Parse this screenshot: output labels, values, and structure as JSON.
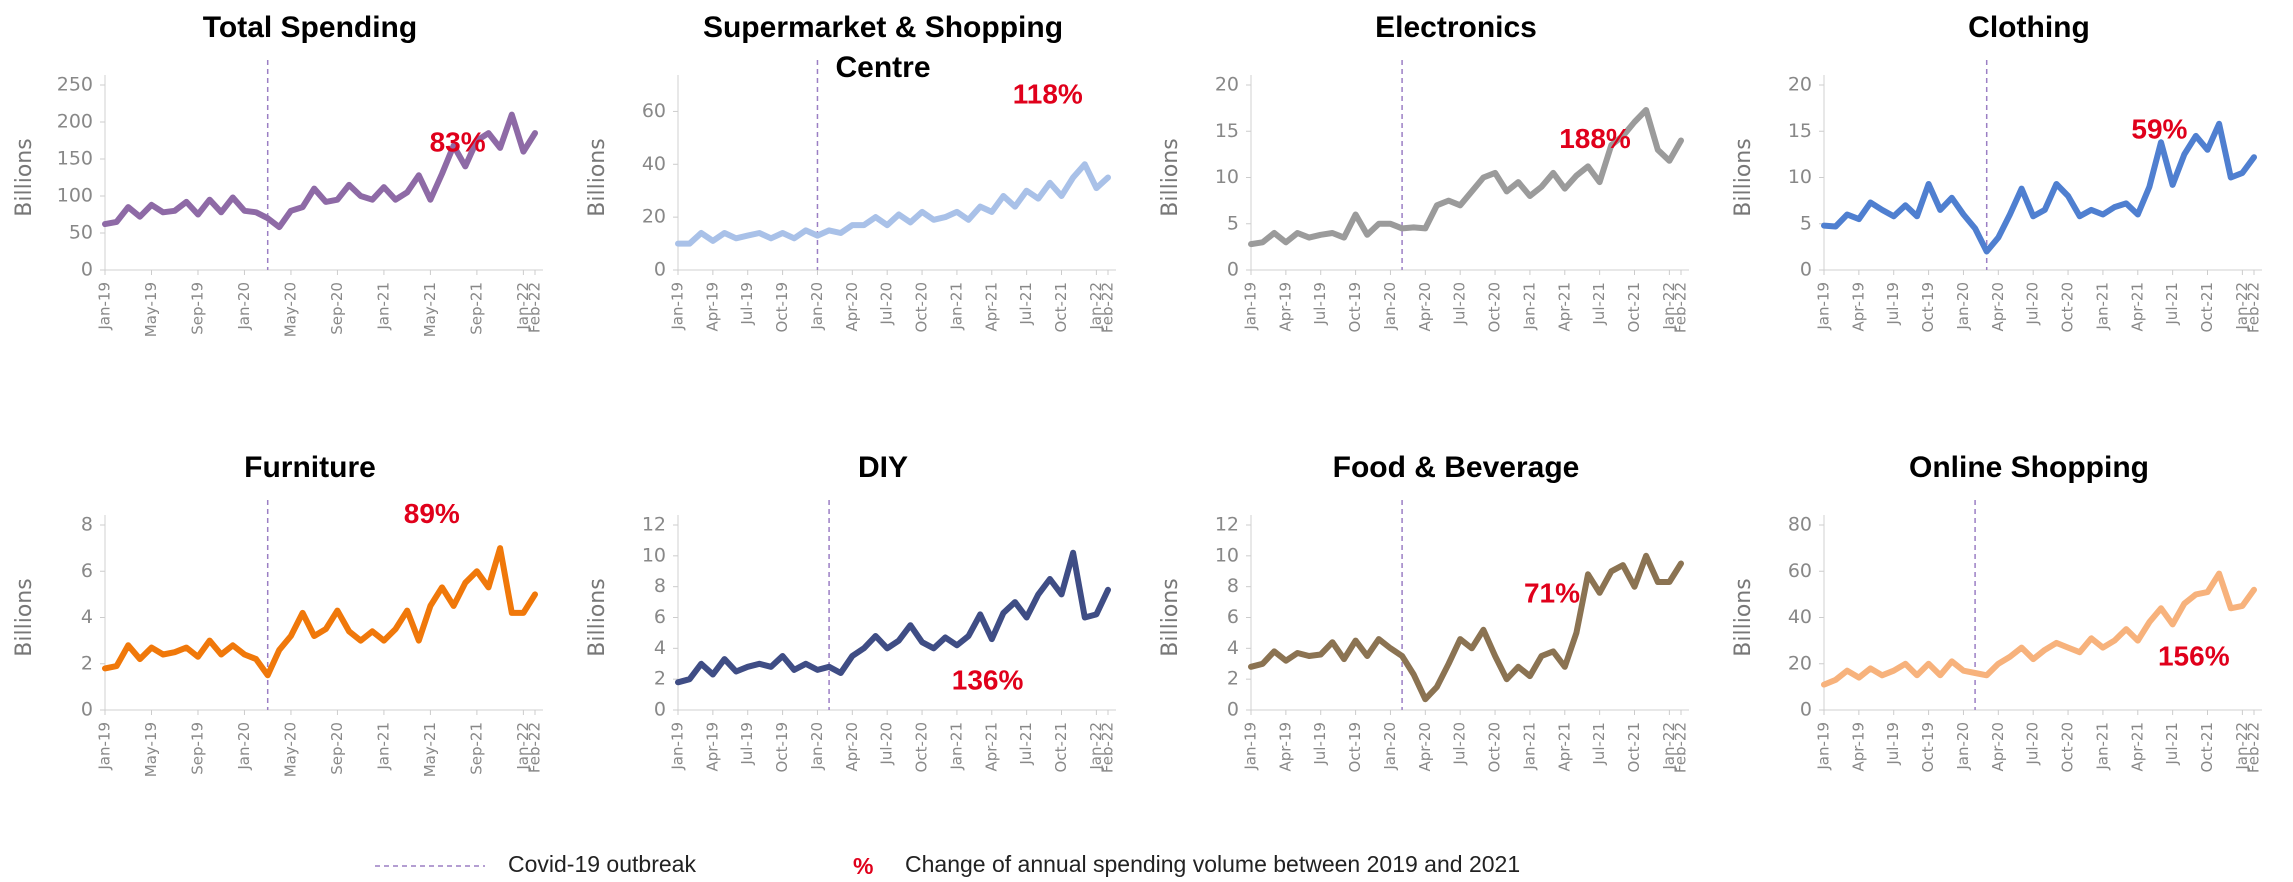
{
  "chart_data": [
    {
      "type": "line",
      "title": "Total Spending",
      "y_label": "Billions",
      "annotation": "83%",
      "categories": [
        "Jan-19",
        null,
        null,
        null,
        "May-19",
        null,
        null,
        null,
        "Sep-19",
        null,
        null,
        null,
        "Jan-20",
        null,
        null,
        null,
        "May-20",
        null,
        null,
        null,
        "Sep-20",
        null,
        null,
        null,
        "Jan-21",
        null,
        null,
        null,
        "May-21",
        null,
        null,
        null,
        "Sep-21",
        null,
        null,
        null,
        "Jan-22",
        "Feb-22"
      ],
      "series": [
        {
          "name": "Total Spending",
          "color": "#8e6aa6",
          "values": [
            62,
            65,
            85,
            72,
            88,
            78,
            80,
            92,
            75,
            95,
            78,
            98,
            80,
            78,
            70,
            58,
            80,
            85,
            110,
            92,
            95,
            115,
            100,
            95,
            112,
            95,
            105,
            128,
            95,
            130,
            168,
            140,
            175,
            185,
            165,
            210,
            160,
            185
          ]
        }
      ],
      "ylim": [
        0,
        250
      ],
      "yticks": [
        0,
        50,
        100,
        150,
        200,
        250
      ]
    },
    {
      "type": "line",
      "title": "Supermarket & Shopping Centre",
      "y_label": "Billions",
      "annotation": "118%",
      "categories": [
        "Jan-19",
        null,
        null,
        "Apr-19",
        null,
        null,
        "Jul-19",
        null,
        null,
        "Oct-19",
        null,
        null,
        "Jan-20",
        null,
        null,
        "Apr-20",
        null,
        null,
        "Jul-20",
        null,
        null,
        "Oct-20",
        null,
        null,
        "Jan-21",
        null,
        null,
        "Apr-21",
        null,
        null,
        "Jul-21",
        null,
        null,
        "Oct-21",
        null,
        null,
        "Jan-22",
        "Feb-22"
      ],
      "series": [
        {
          "name": "Supermarket & Shopping Centre",
          "color": "#a9c1e8",
          "values": [
            10,
            10,
            14,
            11,
            14,
            12,
            13,
            14,
            12,
            14,
            12,
            15,
            13,
            15,
            14,
            17,
            17,
            20,
            17,
            21,
            18,
            22,
            19,
            20,
            22,
            19,
            24,
            22,
            28,
            24,
            30,
            27,
            33,
            28,
            35,
            40,
            31,
            35
          ]
        }
      ],
      "ylim": [
        0,
        70
      ],
      "yticks": [
        0,
        20,
        40,
        60
      ]
    },
    {
      "type": "line",
      "title": "Electronics",
      "y_label": "Billions",
      "annotation": "188%",
      "categories": [
        "Jan-19",
        null,
        null,
        "Apr-19",
        null,
        null,
        "Jul-19",
        null,
        null,
        "Oct-19",
        null,
        null,
        "Jan-20",
        null,
        null,
        "Apr-20",
        null,
        null,
        "Jul-20",
        null,
        null,
        "Oct-20",
        null,
        null,
        "Jan-21",
        null,
        null,
        "Apr-21",
        null,
        null,
        "Jul-21",
        null,
        null,
        "Oct-21",
        null,
        null,
        "Jan-22",
        "Feb-22"
      ],
      "series": [
        {
          "name": "Electronics",
          "color": "#9b9b9b",
          "values": [
            2.8,
            3,
            4,
            3,
            4,
            3.5,
            3.8,
            4,
            3.5,
            6,
            3.8,
            5,
            5,
            4.5,
            4.6,
            4.5,
            7,
            7.5,
            7,
            8.5,
            10,
            10.5,
            8.5,
            9.5,
            8,
            9,
            10.5,
            8.8,
            10.2,
            11.2,
            9.5,
            13.5,
            14.5,
            16,
            17.3,
            13,
            11.8,
            14
          ]
        }
      ],
      "ylim": [
        0,
        20
      ],
      "yticks": [
        0,
        5,
        10,
        15,
        20
      ]
    },
    {
      "type": "line",
      "title": "Clothing",
      "y_label": "Billions",
      "annotation": "59%",
      "categories": [
        "Jan-19",
        null,
        null,
        "Apr-19",
        null,
        null,
        "Jul-19",
        null,
        null,
        "Oct-19",
        null,
        null,
        "Jan-20",
        null,
        null,
        "Apr-20",
        null,
        null,
        "Jul-20",
        null,
        null,
        "Oct-20",
        null,
        null,
        "Jan-21",
        null,
        null,
        "Apr-21",
        null,
        null,
        "Jul-21",
        null,
        null,
        "Oct-21",
        null,
        null,
        "Jan-22",
        "Feb-22"
      ],
      "series": [
        {
          "name": "Clothing",
          "color": "#4f7fd0",
          "values": [
            4.8,
            4.7,
            6,
            5.5,
            7.3,
            6.5,
            5.8,
            7,
            5.8,
            9.3,
            6.5,
            7.8,
            6,
            4.5,
            2,
            3.5,
            6,
            8.8,
            5.8,
            6.5,
            9.3,
            8,
            5.8,
            6.5,
            6,
            6.8,
            7.2,
            6,
            9,
            13.8,
            9.2,
            12.5,
            14.5,
            13,
            15.8,
            10,
            10.5,
            12.2
          ]
        }
      ],
      "ylim": [
        0,
        20
      ],
      "yticks": [
        0,
        5,
        10,
        15,
        20
      ]
    },
    {
      "type": "line",
      "title": "Furniture",
      "y_label": "Billions",
      "annotation": "89%",
      "categories": [
        "Jan-19",
        null,
        null,
        null,
        "May-19",
        null,
        null,
        null,
        "Sep-19",
        null,
        null,
        null,
        "Jan-20",
        null,
        null,
        null,
        "May-20",
        null,
        null,
        null,
        "Sep-20",
        null,
        null,
        null,
        "Jan-21",
        null,
        null,
        null,
        "May-21",
        null,
        null,
        null,
        "Sep-21",
        null,
        null,
        null,
        "Jan-22",
        "Feb-22"
      ],
      "series": [
        {
          "name": "Furniture",
          "color": "#f0780a",
          "values": [
            1.8,
            1.9,
            2.8,
            2.2,
            2.7,
            2.4,
            2.5,
            2.7,
            2.3,
            3,
            2.4,
            2.8,
            2.4,
            2.2,
            1.5,
            2.6,
            3.2,
            4.2,
            3.2,
            3.5,
            4.3,
            3.4,
            3,
            3.4,
            3,
            3.5,
            4.3,
            3,
            4.5,
            5.3,
            4.5,
            5.5,
            6,
            5.3,
            7,
            4.2,
            4.2,
            5
          ]
        }
      ],
      "ylim": [
        0,
        8
      ],
      "yticks": [
        0,
        2,
        4,
        6,
        8
      ]
    },
    {
      "type": "line",
      "title": "DIY",
      "y_label": "Billions",
      "annotation": "136%",
      "categories": [
        "Jan-19",
        null,
        null,
        "Apr-19",
        null,
        null,
        "Jul-19",
        null,
        null,
        "Oct-19",
        null,
        null,
        "Jan-20",
        null,
        null,
        "Apr-20",
        null,
        null,
        "Jul-20",
        null,
        null,
        "Oct-20",
        null,
        null,
        "Jan-21",
        null,
        null,
        "Apr-21",
        null,
        null,
        "Jul-21",
        null,
        null,
        "Oct-21",
        null,
        null,
        "Jan-22",
        "Feb-22"
      ],
      "series": [
        {
          "name": "DIY",
          "color": "#3f4d85",
          "values": [
            1.8,
            2,
            3,
            2.3,
            3.3,
            2.5,
            2.8,
            3,
            2.8,
            3.5,
            2.6,
            3,
            2.6,
            2.8,
            2.4,
            3.5,
            4,
            4.8,
            4,
            4.5,
            5.5,
            4.4,
            4,
            4.7,
            4.2,
            4.8,
            6.2,
            4.6,
            6.3,
            7,
            6,
            7.5,
            8.5,
            7.5,
            10.2,
            6,
            6.2,
            7.8
          ]
        }
      ],
      "ylim": [
        0,
        12
      ],
      "yticks": [
        0,
        2,
        4,
        6,
        8,
        10,
        12
      ]
    },
    {
      "type": "line",
      "title": "Food & Beverage",
      "y_label": "Billions",
      "annotation": "71%",
      "categories": [
        "Jan-19",
        null,
        null,
        "Apr-19",
        null,
        null,
        "Jul-19",
        null,
        null,
        "Oct-19",
        null,
        null,
        "Jan-20",
        null,
        null,
        "Apr-20",
        null,
        null,
        "Jul-20",
        null,
        null,
        "Oct-20",
        null,
        null,
        "Jan-21",
        null,
        null,
        "Apr-21",
        null,
        null,
        "Jul-21",
        null,
        null,
        "Oct-21",
        null,
        null,
        "Jan-22",
        "Feb-22"
      ],
      "series": [
        {
          "name": "Food & Beverage",
          "color": "#8b7352",
          "values": [
            2.8,
            3,
            3.8,
            3.2,
            3.7,
            3.5,
            3.6,
            4.4,
            3.3,
            4.5,
            3.5,
            4.6,
            4,
            3.5,
            2.3,
            0.7,
            1.5,
            3,
            4.6,
            4,
            5.2,
            3.5,
            2,
            2.8,
            2.2,
            3.5,
            3.8,
            2.8,
            5,
            8.8,
            7.6,
            9,
            9.4,
            8,
            10,
            8.3,
            8.3,
            9.5
          ]
        }
      ],
      "ylim": [
        0,
        12
      ],
      "yticks": [
        0,
        2,
        4,
        6,
        8,
        10,
        12
      ]
    },
    {
      "type": "line",
      "title": "Online Shopping",
      "y_label": "Billions",
      "annotation": "156%",
      "categories": [
        "Jan-19",
        null,
        null,
        "Apr-19",
        null,
        null,
        "Jul-19",
        null,
        null,
        "Oct-19",
        null,
        null,
        "Jan-20",
        null,
        null,
        "Apr-20",
        null,
        null,
        "Jul-20",
        null,
        null,
        "Oct-20",
        null,
        null,
        "Jan-21",
        null,
        null,
        "Apr-21",
        null,
        null,
        "Jul-21",
        null,
        null,
        "Oct-21",
        null,
        null,
        "Jan-22",
        "Feb-22"
      ],
      "series": [
        {
          "name": "Online Shopping",
          "color": "#f7b27c",
          "values": [
            11,
            13,
            17,
            14,
            18,
            15,
            17,
            20,
            15,
            20,
            15,
            21,
            17,
            16,
            15,
            20,
            23,
            27,
            22,
            26,
            29,
            27,
            25,
            31,
            27,
            30,
            35,
            30,
            38,
            44,
            37,
            46,
            50,
            51,
            59,
            44,
            45,
            52
          ]
        }
      ],
      "ylim": [
        0,
        80
      ],
      "yticks": [
        0,
        20,
        40,
        60,
        80
      ]
    }
  ],
  "legend": {
    "covid": "Covid-19 outbreak",
    "symbol": "%",
    "change": "Change of annual spending  volume between 2019 and 2021"
  }
}
